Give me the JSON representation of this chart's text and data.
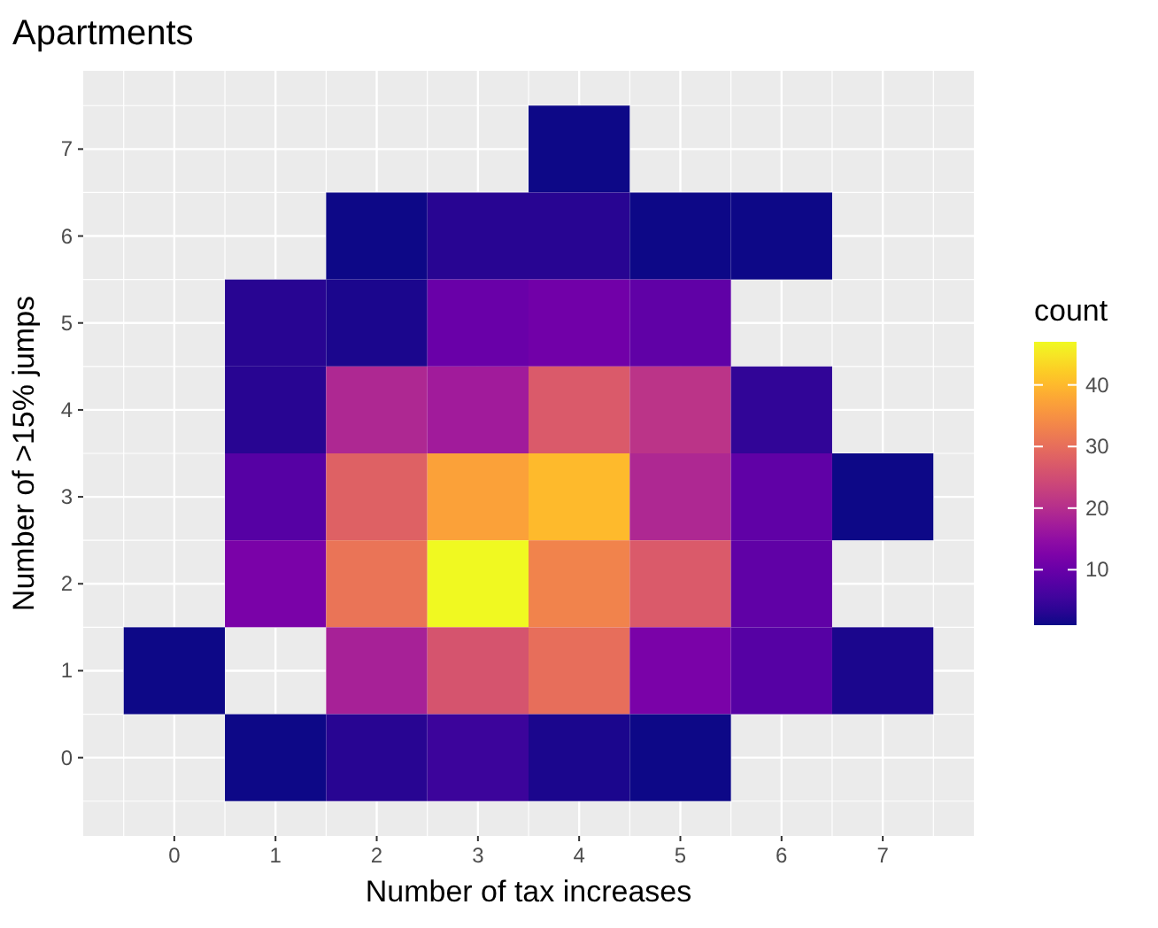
{
  "chart_data": {
    "type": "heatmap",
    "title": "Apartments",
    "xlabel": "Number of tax increases",
    "ylabel": "Number of >15% jumps",
    "clabel": "count",
    "categories": [
      "0",
      "1",
      "2",
      "3",
      "4",
      "5",
      "6",
      "7"
    ],
    "y_categories": [
      "7",
      "6",
      "5",
      "4",
      "3",
      "2",
      "1",
      "0"
    ],
    "cells": [
      [
        null,
        null,
        null,
        null,
        1,
        null,
        null,
        null
      ],
      [
        null,
        null,
        1,
        3,
        3,
        1,
        1,
        null
      ],
      [
        null,
        3,
        2,
        10,
        11,
        9,
        null,
        null
      ],
      [
        null,
        3,
        19,
        17,
        27,
        21,
        4,
        null
      ],
      [
        null,
        8,
        28,
        37,
        40,
        19,
        9,
        1
      ],
      [
        null,
        12,
        31,
        47,
        33,
        27,
        9,
        null
      ],
      [
        1,
        null,
        18,
        26,
        30,
        12,
        8,
        2
      ],
      [
        null,
        1,
        3,
        5,
        2,
        1,
        null,
        null
      ]
    ],
    "clim": [
      1,
      47
    ],
    "cticks": [
      10,
      20,
      30,
      40
    ],
    "grid": true
  }
}
